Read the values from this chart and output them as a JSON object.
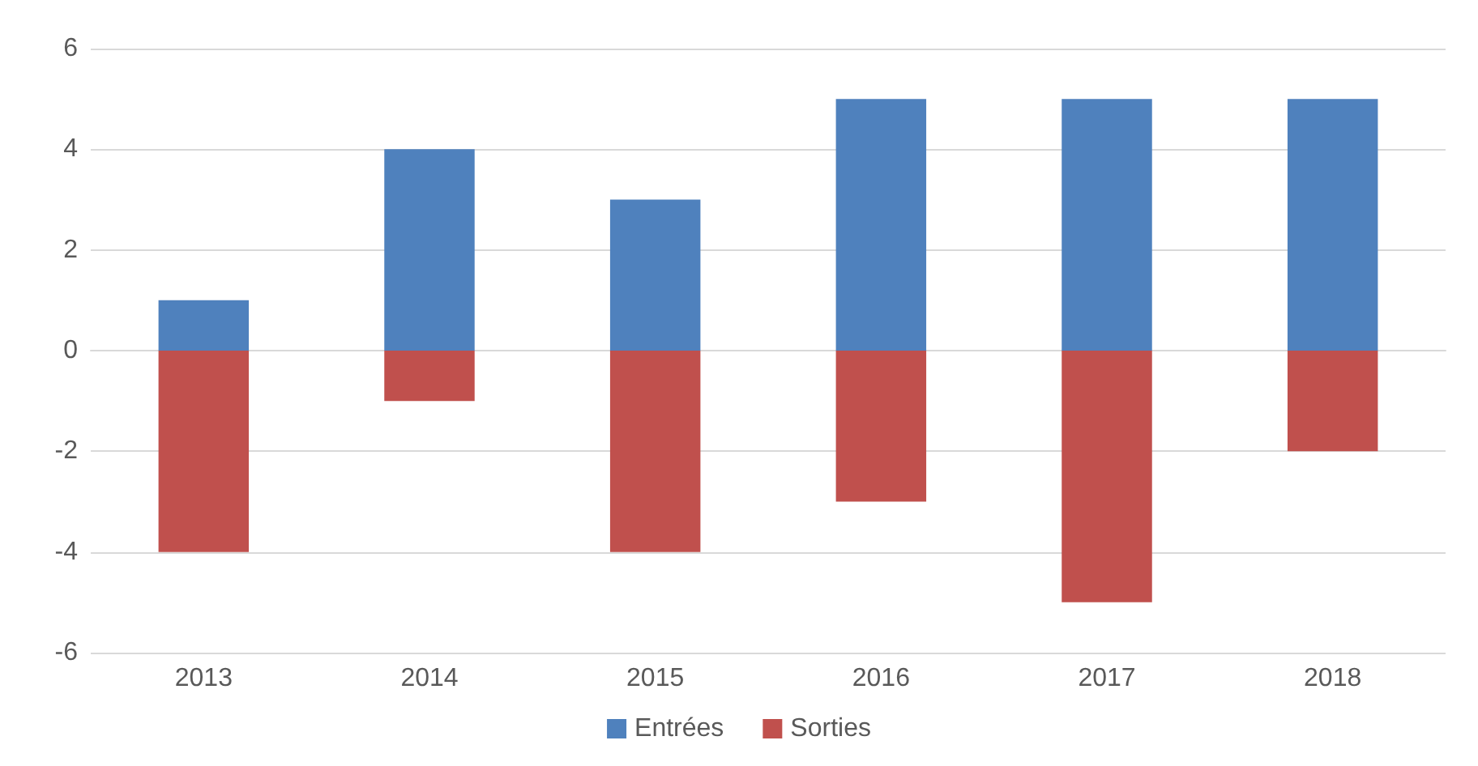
{
  "chart_data": {
    "type": "bar",
    "stacked": true,
    "categories": [
      "2013",
      "2014",
      "2015",
      "2016",
      "2017",
      "2018"
    ],
    "series": [
      {
        "name": "Entrées",
        "color": "#4f81bd",
        "values": [
          1,
          4,
          3,
          5,
          5,
          5
        ]
      },
      {
        "name": "Sorties",
        "color": "#c0504d",
        "values": [
          -4,
          -1,
          -4,
          -3,
          -5,
          -2
        ]
      }
    ],
    "ylim": [
      -6,
      6
    ],
    "yticks": [
      -6,
      -4,
      -2,
      0,
      2,
      4,
      6
    ],
    "grid": "y",
    "legend": "bottom"
  }
}
